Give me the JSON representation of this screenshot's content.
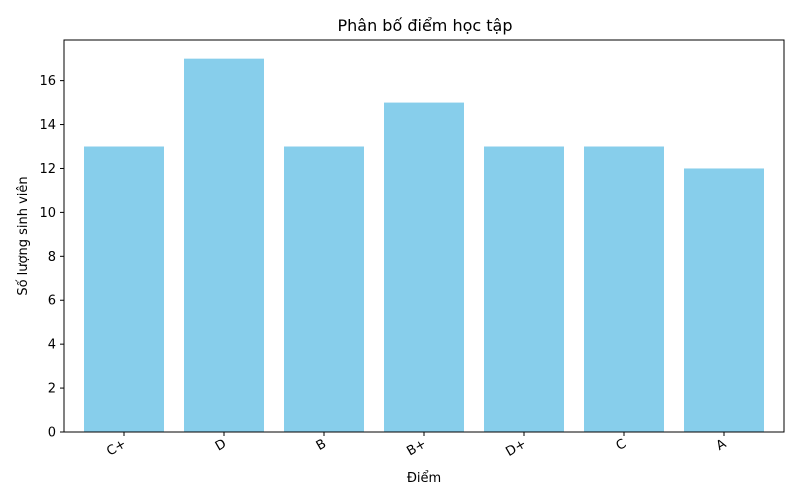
{
  "chart_data": {
    "type": "bar",
    "title": "Phân bố điểm học tập",
    "xlabel": "Điểm",
    "ylabel": "Số lượng sinh viên",
    "categories": [
      "C+",
      "D",
      "B",
      "B+",
      "D+",
      "C",
      "A"
    ],
    "values": [
      13,
      17,
      13,
      15,
      13,
      13,
      12
    ],
    "ylim": [
      0,
      17.85
    ],
    "yticks": [
      0,
      2,
      4,
      6,
      8,
      10,
      12,
      14,
      16
    ],
    "bar_color": "#87CEEB",
    "grid": false,
    "legend": "none"
  }
}
